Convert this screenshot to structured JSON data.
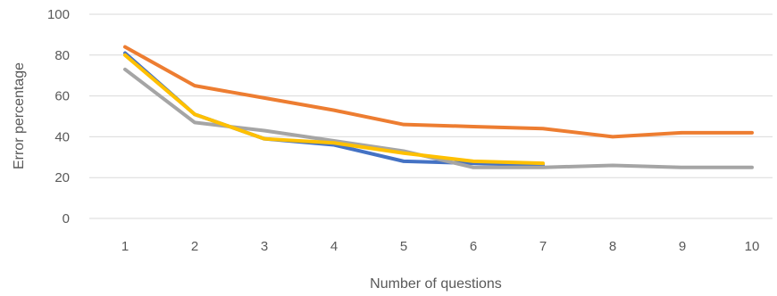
{
  "chart_data": {
    "type": "line",
    "title": "",
    "xlabel": "Number of questions",
    "ylabel": "Error percentage",
    "x": [
      1,
      2,
      3,
      4,
      5,
      6,
      7,
      8,
      9,
      10
    ],
    "ylim": [
      0,
      100
    ],
    "yticks": [
      0,
      20,
      40,
      60,
      80,
      100
    ],
    "grid": "horizontal",
    "legend": "none",
    "series": [
      {
        "color": "#4472c4",
        "values": [
          81,
          51,
          39,
          36,
          28,
          27,
          26,
          null,
          null,
          null
        ]
      },
      {
        "color": "#ed7d31",
        "values": [
          84,
          65,
          59,
          53,
          46,
          45,
          44,
          40,
          42,
          42
        ]
      },
      {
        "color": "#a5a5a5",
        "values": [
          73,
          47,
          43,
          38,
          33,
          25,
          25,
          26,
          25,
          25
        ]
      },
      {
        "color": "#ffc000",
        "values": [
          80,
          51,
          39,
          37,
          32,
          28,
          27,
          null,
          null,
          null
        ]
      }
    ]
  }
}
